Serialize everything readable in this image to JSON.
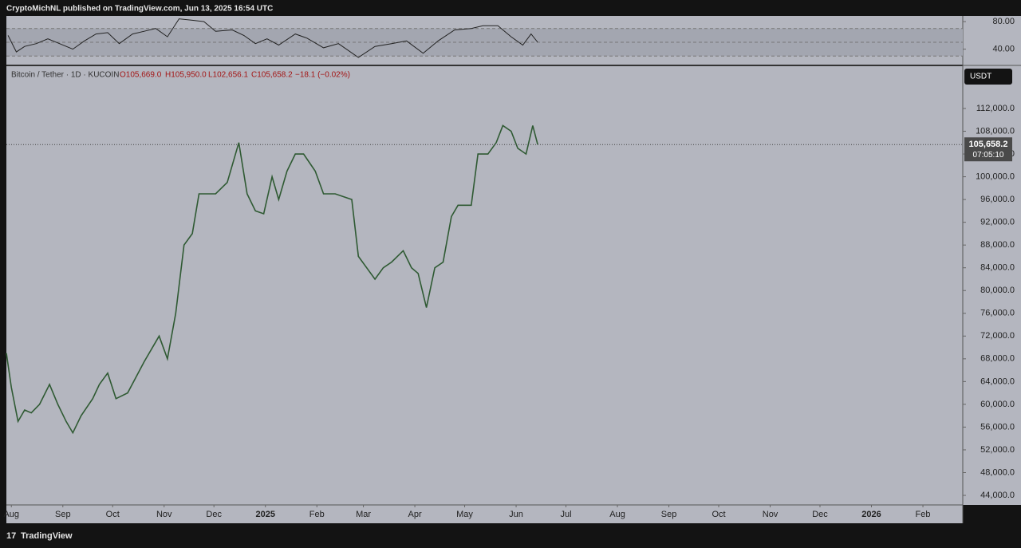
{
  "header": {
    "text": "CryptoMichNL published on TradingView.com, Jun 13, 2025 16:54 UTC"
  },
  "footer": {
    "text": "TradingView"
  },
  "chart_data": [
    {
      "type": "line",
      "name": "Bitcoin / Tether · 1D · KUCOIN",
      "legend": {
        "open": "O105,669.0",
        "high": "H105,950.0",
        "low": "L102,656.1",
        "close": "C105,658.2",
        "change": "−18.1 (−0.02%)"
      },
      "currency": "USDT",
      "countdown": "07:05:10",
      "last_price": {
        "value": 105658.2,
        "label": "105,658.2"
      },
      "color": "#2f5a33",
      "x": [
        -3,
        0,
        4,
        8,
        12,
        17,
        23,
        28,
        33,
        37,
        42,
        49,
        53,
        58,
        63,
        70,
        80,
        89,
        94,
        99,
        104,
        109,
        113,
        118,
        123,
        130,
        137,
        142,
        147,
        152,
        157,
        161,
        166,
        171,
        176,
        183,
        188,
        195,
        205,
        209,
        214,
        219,
        224,
        229,
        236,
        241,
        245,
        250,
        255,
        260,
        265,
        269,
        277,
        281,
        287,
        292,
        296,
        301,
        305,
        310,
        314,
        317
      ],
      "values": [
        69000,
        63000,
        57000,
        59000,
        58500,
        60000,
        63500,
        60000,
        57000,
        55000,
        58000,
        61000,
        63500,
        65500,
        61000,
        62000,
        67500,
        72000,
        68000,
        76000,
        88000,
        90000,
        97000,
        97000,
        97000,
        99000,
        106000,
        97000,
        94000,
        93500,
        100000,
        96000,
        101000,
        104000,
        104000,
        101000,
        97000,
        97000,
        96000,
        86000,
        84000,
        82000,
        84000,
        85000,
        87000,
        84000,
        83000,
        77000,
        84000,
        85000,
        93000,
        95000,
        95000,
        104000,
        104000,
        106000,
        109000,
        108000,
        105000,
        104000,
        109000,
        105658.2
      ],
      "xlim": [
        -3,
        573
      ],
      "xticks": [
        {
          "value": 0,
          "label": "Aug"
        },
        {
          "value": 31,
          "label": "Sep"
        },
        {
          "value": 61,
          "label": "Oct"
        },
        {
          "value": 92,
          "label": "Nov"
        },
        {
          "value": 122,
          "label": "Dec"
        },
        {
          "value": 153,
          "label": "2025"
        },
        {
          "value": 184,
          "label": "Feb"
        },
        {
          "value": 212,
          "label": "Mar"
        },
        {
          "value": 243,
          "label": "Apr"
        },
        {
          "value": 273,
          "label": "May"
        },
        {
          "value": 304,
          "label": "Jun"
        },
        {
          "value": 334,
          "label": "Jul"
        },
        {
          "value": 365,
          "label": "Aug"
        },
        {
          "value": 396,
          "label": "Sep"
        },
        {
          "value": 426,
          "label": "Oct"
        },
        {
          "value": 457,
          "label": "Nov"
        },
        {
          "value": 487,
          "label": "Dec"
        },
        {
          "value": 518,
          "label": "2026"
        },
        {
          "value": 549,
          "label": "Feb"
        }
      ],
      "ylim": [
        42320,
        119430
      ],
      "yticks": [
        {
          "value": 44000,
          "label": "44,000.0"
        },
        {
          "value": 48000,
          "label": "48,000.0"
        },
        {
          "value": 52000,
          "label": "52,000.0"
        },
        {
          "value": 56000,
          "label": "56,000.0"
        },
        {
          "value": 60000,
          "label": "60,000.0"
        },
        {
          "value": 64000,
          "label": "64,000.0"
        },
        {
          "value": 68000,
          "label": "68,000.0"
        },
        {
          "value": 72000,
          "label": "72,000.0"
        },
        {
          "value": 76000,
          "label": "76,000.0"
        },
        {
          "value": 80000,
          "label": "80,000.0"
        },
        {
          "value": 84000,
          "label": "84,000.0"
        },
        {
          "value": 88000,
          "label": "88,000.0"
        },
        {
          "value": 92000,
          "label": "92,000.0"
        },
        {
          "value": 96000,
          "label": "96,000.0"
        },
        {
          "value": 100000,
          "label": "100,000.0"
        },
        {
          "value": 104000,
          "label": "104,000.0"
        },
        {
          "value": 108000,
          "label": "108,000.0"
        },
        {
          "value": 112000,
          "label": "112,000.0"
        }
      ]
    },
    {
      "type": "line",
      "name": "RSI",
      "color": "#222222",
      "x": [
        -2,
        3,
        8,
        15,
        22,
        29,
        37,
        44,
        51,
        58,
        65,
        73,
        80,
        87,
        94,
        101,
        109,
        116,
        123,
        133,
        140,
        147,
        154,
        161,
        171,
        178,
        188,
        197,
        209,
        219,
        229,
        238,
        248,
        257,
        267,
        277,
        284,
        293,
        301,
        308,
        313,
        317
      ],
      "values": [
        60,
        36,
        44,
        48,
        55,
        48,
        40,
        52,
        62,
        64,
        48,
        62,
        66,
        70,
        58,
        84,
        82,
        80,
        66,
        68,
        60,
        48,
        55,
        46,
        62,
        56,
        42,
        48,
        28,
        44,
        48,
        52,
        34,
        52,
        68,
        70,
        74,
        74,
        58,
        46,
        62,
        50
      ],
      "xlim": [
        -3,
        573
      ],
      "ylim": [
        17.6,
        88.2
      ],
      "yticks": [
        {
          "value": 80,
          "label": "80.00"
        },
        {
          "value": 40,
          "label": "40.00"
        }
      ],
      "levels": [
        30,
        50,
        70
      ]
    }
  ]
}
